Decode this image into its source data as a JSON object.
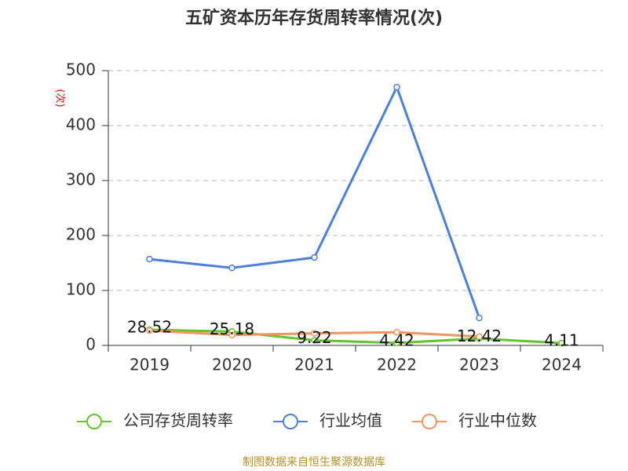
{
  "chart_data": {
    "type": "line",
    "title": "五矿资本历年存货周转率情况(次)",
    "y_label": "(次)",
    "categories": [
      "2019",
      "2020",
      "2021",
      "2022",
      "2023",
      "2024"
    ],
    "series": [
      {
        "name": "公司存货周转率",
        "color": "#63c42e",
        "values": [
          28.52,
          25.18,
          9.22,
          4.42,
          12.42,
          4.11
        ],
        "data_labels": true
      },
      {
        "name": "行业均值",
        "color": "#4a7fdb",
        "values": [
          157,
          141,
          160,
          470,
          50,
          null
        ]
      },
      {
        "name": "行业中位数",
        "color": "#f0955f",
        "values": [
          27,
          19,
          22,
          24,
          16,
          null
        ]
      }
    ],
    "ylim": [
      0,
      500
    ],
    "yticks": [
      0,
      100,
      200,
      300,
      400,
      500
    ],
    "grid": true,
    "source": "制图数据来自恒生聚源数据库"
  }
}
